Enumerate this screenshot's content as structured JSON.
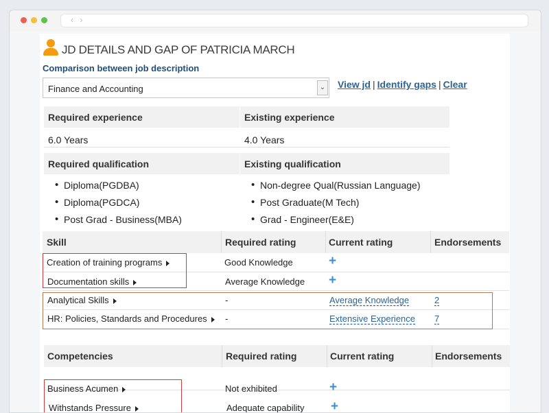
{
  "page": {
    "title": "JD DETAILS AND GAP OF PATRICIA MARCH",
    "subtitle": "Comparison between job description",
    "select_value": "Finance and Accounting",
    "links": {
      "view_jd": "View jd",
      "identify_gaps": "Identify gaps",
      "clear": "Clear",
      "separator": "|"
    }
  },
  "experience": {
    "required_header": "Required experience",
    "existing_header": "Existing experience",
    "required_value": "6.0 Years",
    "existing_value": "4.0 Years"
  },
  "qualification": {
    "required_header": "Required qualification",
    "existing_header": "Existing qualification",
    "required": [
      "Diploma(PGDBA)",
      "Diploma(PGDCA)",
      "Post Grad - Business(MBA)"
    ],
    "existing": [
      "Non-degree Qual(Russian Language)",
      "Post Graduate(M Tech)",
      "Grad - Engineer(E&E)"
    ]
  },
  "skills": {
    "headers": [
      "Skill",
      "Required rating",
      "Current rating",
      "Endorsements"
    ],
    "rows": [
      {
        "name": "Creation of training programs",
        "required": "Good Knowledge",
        "current": "",
        "endorsements": ""
      },
      {
        "name": "Documentation skills",
        "required": "Average Knowledge",
        "current": "",
        "endorsements": ""
      },
      {
        "name": "Analytical Skills",
        "required": "-",
        "current": "Average Knowledge",
        "endorsements": "2"
      },
      {
        "name": "HR: Policies, Standards and Procedures",
        "required": "-",
        "current": "Extensive Experience",
        "endorsements": "7"
      }
    ]
  },
  "competencies": {
    "headers": [
      "Competencies",
      "Required rating",
      "Current rating",
      "Endorsements"
    ],
    "rows": [
      {
        "name": "Business Acumen",
        "required": "Not exhibited",
        "current": "",
        "endorsements": ""
      },
      {
        "name": "Withstands Pressure",
        "required": "Adequate capability",
        "current": "",
        "endorsements": ""
      }
    ]
  },
  "colors": {
    "accent": "#2a6496",
    "title_blue": "#1f4e79",
    "icon_orange": "#f39c12",
    "plus_blue": "#3b8ed6",
    "gap_red": "#d03a3a",
    "gap_brown": "#b07b50"
  },
  "icons": {
    "user": "user-icon",
    "add": "plus-icon",
    "caret": "caret-right-icon",
    "dropdown": "chevron-down-icon"
  }
}
